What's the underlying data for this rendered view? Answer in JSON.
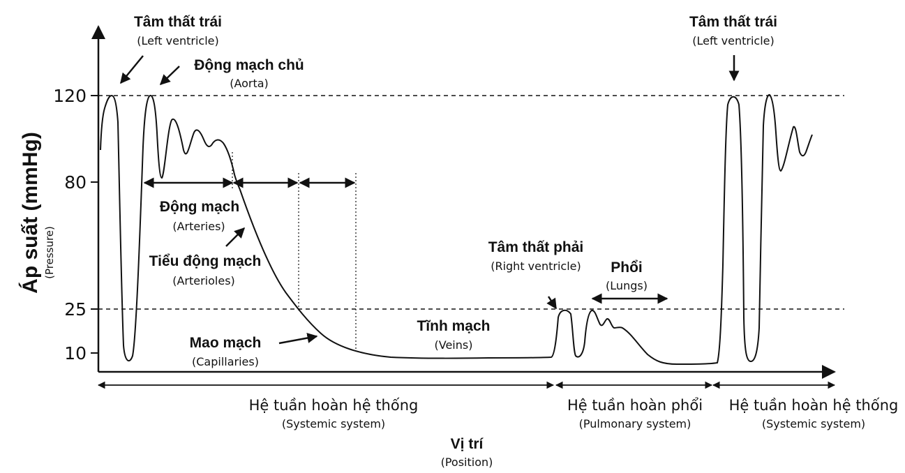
{
  "chart_data": {
    "type": "line",
    "ylabel": "Áp suất (mmHg)",
    "ylabel_sub": "(Pressure)",
    "xlabel": "Vị trí",
    "xlabel_sub": "(Position)",
    "y_ticks": [
      "120",
      "80",
      "25",
      "10"
    ],
    "y_tick_values": [
      120,
      80,
      25,
      10
    ],
    "reference_lines": [
      120,
      25
    ],
    "labels": {
      "lv_left": {
        "vi": "Tâm thất trái",
        "en": "(Left ventricle)"
      },
      "aorta": {
        "vi": "Động mạch chủ",
        "en": "(Aorta)"
      },
      "arteries": {
        "vi": "Động mạch",
        "en": "(Arteries)"
      },
      "arterioles": {
        "vi": "Tiểu động mạch",
        "en": "(Arterioles)"
      },
      "capillaries": {
        "vi": "Mao mạch",
        "en": "(Capillaries)"
      },
      "veins": {
        "vi": "Tĩnh mạch",
        "en": "(Veins)"
      },
      "rv": {
        "vi": "Tâm thất phải",
        "en": "(Right ventricle)"
      },
      "lungs": {
        "vi": "Phổi",
        "en": "(Lungs)"
      },
      "lv_right": {
        "vi": "Tâm thất trái",
        "en": "(Left ventricle)"
      }
    },
    "systems": [
      {
        "vi": "Hệ tuần hoàn hệ thống",
        "en": "(Systemic system)"
      },
      {
        "vi": "Hệ tuần hoàn phổi",
        "en": "(Pulmonary system)"
      },
      {
        "vi": "Hệ tuần hoàn hệ thống",
        "en": "(Systemic system)"
      }
    ]
  }
}
